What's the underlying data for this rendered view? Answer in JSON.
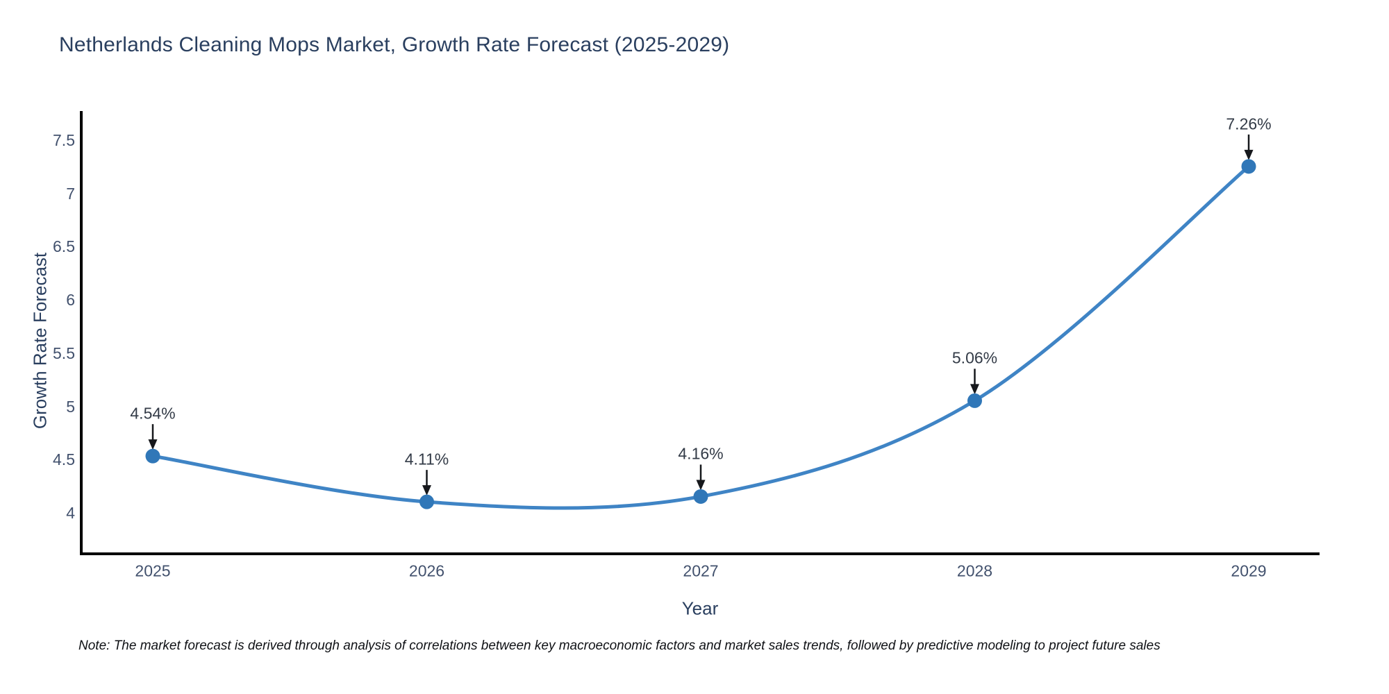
{
  "page": {
    "footnote": "Note: The market forecast is derived through analysis of correlations between key macroeconomic factors and market sales trends, followed by predictive modeling to project future sales"
  },
  "chart_data": {
    "type": "line",
    "title": "Netherlands Cleaning Mops Market, Growth Rate Forecast (2025-2029)",
    "xlabel": "Year",
    "ylabel": "Growth Rate Forecast",
    "categories": [
      "2025",
      "2026",
      "2027",
      "2028",
      "2029"
    ],
    "series": [
      {
        "name": "Growth Rate Forecast",
        "values": [
          4.54,
          4.11,
          4.16,
          5.06,
          7.26
        ],
        "point_labels": [
          "4.54%",
          "4.11%",
          "4.16%",
          "5.06%",
          "7.26%"
        ]
      }
    ],
    "yticks": [
      4,
      4.5,
      5,
      5.5,
      6,
      6.5,
      7,
      7.5
    ],
    "ylim": [
      3.62,
      7.78
    ],
    "line_shape": "spline",
    "grid": false,
    "legend": "none",
    "annotation_style": "value-label-with-down-arrow-to-point",
    "colors": {
      "line": "#3f84c5",
      "marker": "#3077b8",
      "axis": "#000000",
      "tick_text": "#42516d",
      "title_text": "#2a3f5f",
      "annotation_text": "#333b47",
      "arrow": "#16181c",
      "background": "#ffffff"
    }
  }
}
